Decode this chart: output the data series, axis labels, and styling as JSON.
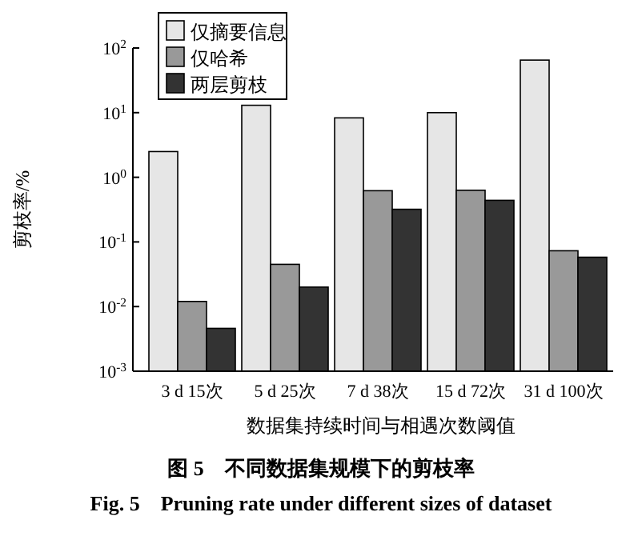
{
  "chart_data": {
    "type": "bar",
    "title": "图 5　不同数据集规模下的剪枝率",
    "subtitle": "Fig. 5　Pruning rate under different sizes of dataset",
    "xlabel": "数据集持续时间与相遇次数阈值",
    "ylabel": "剪枝率/%",
    "categories": [
      "3 d 15次",
      "5 d 25次",
      "7 d 38次",
      "15 d 72次",
      "31 d 100次"
    ],
    "series": [
      {
        "name": "仅摘要信息",
        "color": "#e6e6e6",
        "values": [
          2.5,
          13,
          8.3,
          10,
          65
        ]
      },
      {
        "name": "仅哈希",
        "color": "#999999",
        "values": [
          0.012,
          0.045,
          0.62,
          0.63,
          0.073
        ]
      },
      {
        "name": "两层剪枝",
        "color": "#333333",
        "values": [
          0.0046,
          0.02,
          0.32,
          0.44,
          0.058
        ]
      }
    ],
    "log": "y",
    "ylim": [
      0.001,
      100
    ],
    "yticks": [
      {
        "value": 0.001,
        "label": "10$^{-3}$"
      },
      {
        "value": 0.01,
        "label": "10$^{-2}$"
      },
      {
        "value": 0.1,
        "label": "10$^{-1}$"
      },
      {
        "value": 1,
        "label": "10$^{0}$"
      },
      {
        "value": 10,
        "label": "10$^{1}$"
      },
      {
        "value": 100,
        "label": "10$^{2}$"
      }
    ],
    "grid": false,
    "legend": "top left"
  }
}
